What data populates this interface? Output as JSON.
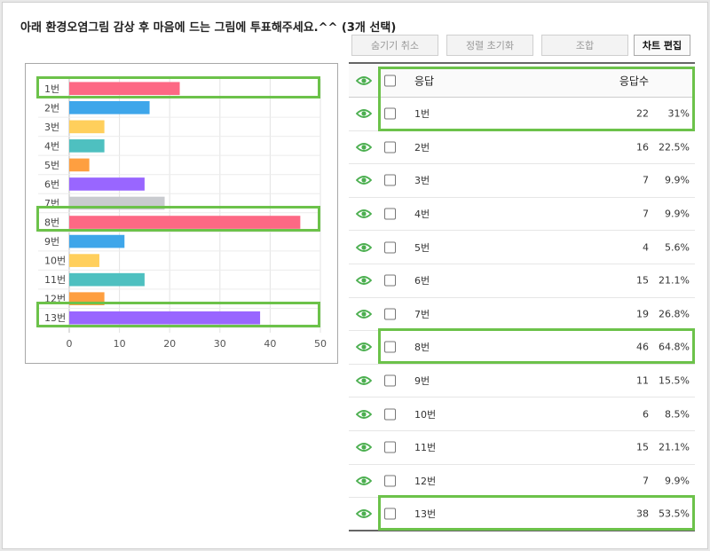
{
  "question": "아래 환경오염그림 감상 후 마음에 드는 그림에 투표해주세요.^^ (3개 선택)",
  "toolbar": {
    "hide_cancel": "숨기기 취소",
    "sort_reset": "정렬 초기화",
    "combine": "조합",
    "chart_edit": "차트 편집"
  },
  "table": {
    "header_response": "응답",
    "header_count": "응답수",
    "rows": [
      {
        "label": "1번",
        "count": "22",
        "pct": "31%"
      },
      {
        "label": "2번",
        "count": "16",
        "pct": "22.5%"
      },
      {
        "label": "3번",
        "count": "7",
        "pct": "9.9%"
      },
      {
        "label": "4번",
        "count": "7",
        "pct": "9.9%"
      },
      {
        "label": "5번",
        "count": "4",
        "pct": "5.6%"
      },
      {
        "label": "6번",
        "count": "15",
        "pct": "21.1%"
      },
      {
        "label": "7번",
        "count": "19",
        "pct": "26.8%"
      },
      {
        "label": "8번",
        "count": "46",
        "pct": "64.8%"
      },
      {
        "label": "9번",
        "count": "11",
        "pct": "15.5%"
      },
      {
        "label": "10번",
        "count": "6",
        "pct": "8.5%"
      },
      {
        "label": "11번",
        "count": "15",
        "pct": "21.1%"
      },
      {
        "label": "12번",
        "count": "7",
        "pct": "9.9%"
      },
      {
        "label": "13번",
        "count": "38",
        "pct": "53.5%"
      }
    ]
  },
  "highlighted_options": [
    "1번",
    "8번",
    "13번"
  ],
  "colors": {
    "highlight": "#6cc24a",
    "eye_icon": "#4caf50"
  },
  "chart_data": {
    "type": "bar",
    "orientation": "horizontal",
    "categories": [
      "1번",
      "2번",
      "3번",
      "4번",
      "5번",
      "6번",
      "7번",
      "8번",
      "9번",
      "10번",
      "11번",
      "12번",
      "13번"
    ],
    "values": [
      22,
      16,
      7,
      7,
      4,
      15,
      19,
      46,
      11,
      6,
      15,
      7,
      38
    ],
    "colors": [
      "#fd6884",
      "#3ea6ea",
      "#ffcf5c",
      "#4ec0c0",
      "#fe9f40",
      "#9966ff",
      "#c9cbcf",
      "#fd6884",
      "#3ea6ea",
      "#ffcf5c",
      "#4ec0c0",
      "#fe9f40",
      "#9966ff"
    ],
    "xlim": [
      0,
      50
    ],
    "xticks": [
      0,
      10,
      20,
      30,
      40,
      50
    ],
    "grid": true,
    "legend": "none"
  }
}
